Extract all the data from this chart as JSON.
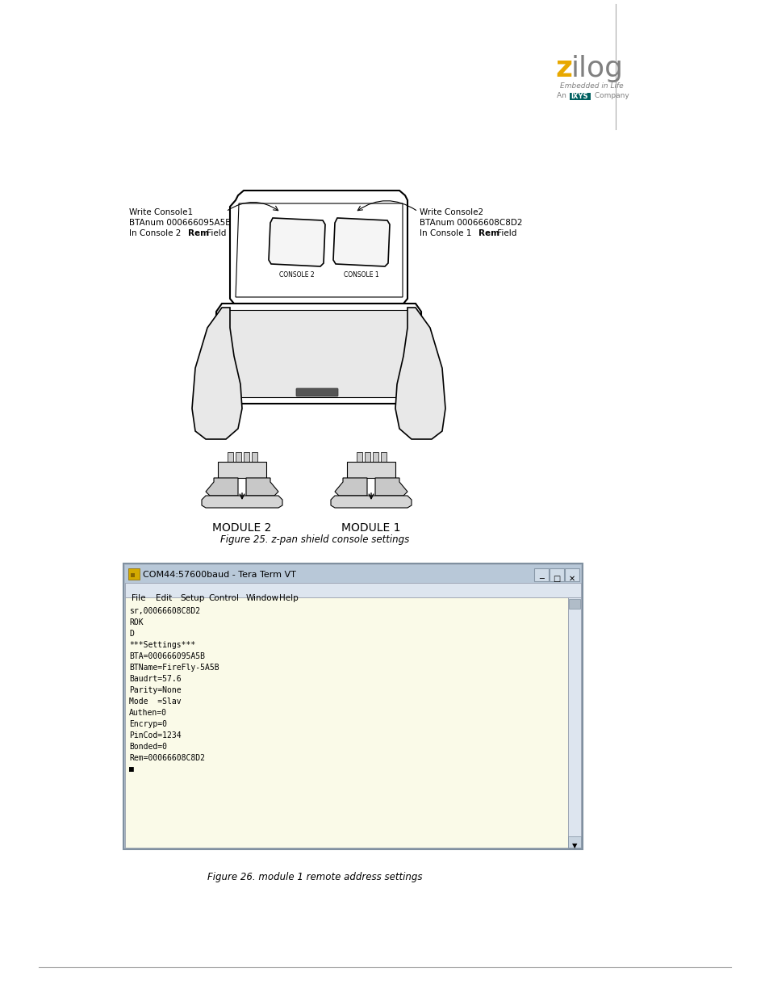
{
  "bg_color": "#ffffff",
  "page_width": 9.54,
  "page_height": 12.35,
  "left_ann1": "Write Console1",
  "left_ann2": "BTAnum 000666095A5B",
  "left_ann3a": "In Console 2 ",
  "left_ann3b": "Rem",
  "left_ann3c": " Field",
  "right_ann1": "Write Console2",
  "right_ann2": "BTAnum 00066608C8D2",
  "right_ann3a": "In Console 1 ",
  "right_ann3b": "Rem",
  "right_ann3c": " Field",
  "console_label_left": "CONSOLE 2",
  "console_label_right": "CONSOLE 1",
  "module_label_left": "MODULE 2",
  "module_label_right": "MODULE 1",
  "fig25_caption": "Figure 25. z-pan shield console settings",
  "fig26_caption": "Figure 26. module 1 remote address settings",
  "terminal_title": "COM44:57600baud - Tera Term VT",
  "terminal_menu": [
    "File",
    "Edit",
    "Setup",
    "Control",
    "Window",
    "Help"
  ],
  "terminal_lines": [
    "sr,00066608C8D2",
    "ROK",
    "D",
    "***Settings***",
    "BTA=000666095A5B",
    "BTName=FireFly-5A5B",
    "Baudrt=57.6",
    "Parity=None",
    "Mode  =Slav",
    "Authen=0",
    "Encryp=0",
    "PinCod=1234",
    "Bonded=0",
    "Rem=00066608C8D2",
    "■"
  ],
  "logo_z_color": "#E8A800",
  "logo_ilog_color": "#808080",
  "logo_sub_color": "#808080",
  "ixys_bg": "#006060",
  "term_title_bg": "#b8c8d8",
  "term_content_bg": "#fafae8",
  "term_border": "#8090a0",
  "term_scrollbar": "#c8d4e0"
}
